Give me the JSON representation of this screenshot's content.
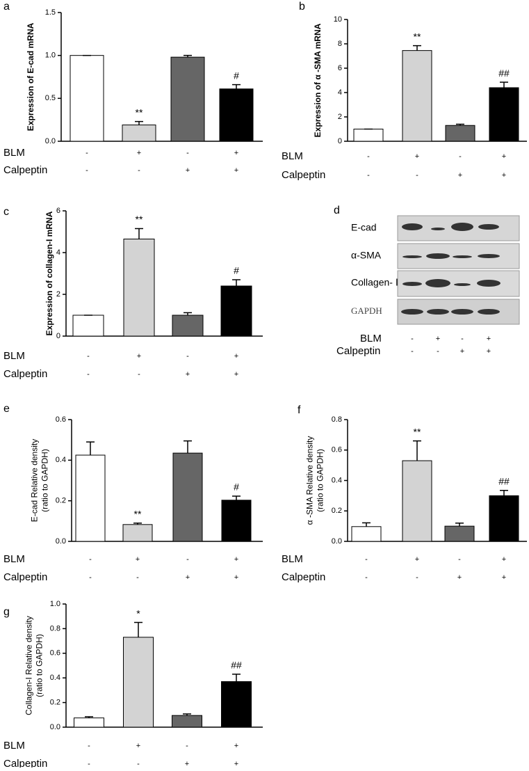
{
  "chart_data": [
    {
      "type": "bar",
      "panel": "a",
      "ylabel": [
        "Expression of E-cad mRNA"
      ],
      "ylim": [
        0,
        1.5
      ],
      "yticks": [
        {
          "value": 0,
          "label": "0.0"
        },
        0.5,
        {
          "value": 1,
          "label": "1.0"
        },
        1.5
      ],
      "values": [
        1.0,
        0.19,
        0.98,
        0.61
      ],
      "errors": [
        0,
        0.04,
        0.02,
        0.05
      ],
      "colors": [
        "#ffffff",
        "#d3d3d3",
        "#666666",
        "#000000"
      ],
      "annotations": [
        null,
        "**",
        null,
        "#"
      ],
      "treatments": [
        {
          "name": "BLM",
          "signs": [
            "-",
            "+",
            "-",
            "+"
          ]
        },
        {
          "name": "Calpeptin",
          "signs": [
            "-",
            "-",
            "+",
            "+"
          ]
        }
      ]
    },
    {
      "type": "bar",
      "panel": "b",
      "ylabel": [
        "Expression of α -SMA mRNA"
      ],
      "ylim": [
        0,
        10
      ],
      "yticks": [
        0,
        2,
        4,
        6,
        8,
        10
      ],
      "values": [
        1.0,
        7.45,
        1.3,
        4.4
      ],
      "errors": [
        0,
        0.4,
        0.1,
        0.45
      ],
      "colors": [
        "#ffffff",
        "#d3d3d3",
        "#666666",
        "#000000"
      ],
      "annotations": [
        null,
        "**",
        null,
        "##"
      ],
      "treatments": [
        {
          "name": "BLM",
          "signs": [
            "-",
            "+",
            "-",
            "+"
          ]
        },
        {
          "name": "Calpeptin",
          "signs": [
            "-",
            "-",
            "+",
            "+"
          ]
        }
      ]
    },
    {
      "type": "bar",
      "panel": "c",
      "ylabel": [
        "Expression of collagen-I mRNA"
      ],
      "ylim": [
        0,
        6
      ],
      "yticks": [
        0,
        2,
        4,
        6
      ],
      "values": [
        1.0,
        4.65,
        1.0,
        2.4
      ],
      "errors": [
        0,
        0.5,
        0.12,
        0.3
      ],
      "colors": [
        "#ffffff",
        "#d3d3d3",
        "#666666",
        "#000000"
      ],
      "annotations": [
        null,
        "**",
        null,
        "#"
      ],
      "treatments": [
        {
          "name": "BLM",
          "signs": [
            "-",
            "+",
            "-",
            "+"
          ]
        },
        {
          "name": "Calpeptin",
          "signs": [
            "-",
            "-",
            "+",
            "+"
          ]
        }
      ]
    },
    {
      "type": "bar",
      "panel": "e",
      "ylabel": [
        "E-cad Relative density",
        "(ratio to GAPDH)"
      ],
      "ylim": [
        0,
        0.6
      ],
      "yticks": [
        {
          "value": 0,
          "label": "0.0"
        },
        0.2,
        0.4,
        0.6
      ],
      "values": [
        0.425,
        0.083,
        0.435,
        0.203
      ],
      "errors": [
        0.065,
        0.007,
        0.06,
        0.02
      ],
      "colors": [
        "#ffffff",
        "#d3d3d3",
        "#666666",
        "#000000"
      ],
      "annotations": [
        null,
        "**",
        null,
        "#"
      ],
      "treatments": [
        {
          "name": "BLM",
          "signs": [
            "-",
            "+",
            "-",
            "+"
          ]
        },
        {
          "name": "Calpeptin",
          "signs": [
            "-",
            "-",
            "+",
            "+"
          ]
        }
      ]
    },
    {
      "type": "bar",
      "panel": "f",
      "ylabel": [
        "α -SMA Relative density",
        "(ratio to GAPDH)"
      ],
      "ylim": [
        0,
        0.8
      ],
      "yticks": [
        {
          "value": 0,
          "label": "0.0"
        },
        0.2,
        0.4,
        0.6,
        0.8
      ],
      "values": [
        0.097,
        0.53,
        0.1,
        0.3
      ],
      "errors": [
        0.025,
        0.13,
        0.02,
        0.035
      ],
      "colors": [
        "#ffffff",
        "#d3d3d3",
        "#666666",
        "#000000"
      ],
      "annotations": [
        null,
        "**",
        null,
        "##"
      ],
      "treatments": [
        {
          "name": "BLM",
          "signs": [
            "-",
            "+",
            "-",
            "+"
          ]
        },
        {
          "name": "Calpeptin",
          "signs": [
            "-",
            "-",
            "+",
            "+"
          ]
        }
      ]
    },
    {
      "type": "bar",
      "panel": "g",
      "ylabel": [
        "Collagen-I Relative density",
        "(ratio to GAPDH)"
      ],
      "ylim": [
        0,
        1.0
      ],
      "yticks": [
        {
          "value": 0,
          "label": "0.0"
        },
        0.2,
        0.4,
        0.6,
        0.8,
        {
          "value": 1,
          "label": "1.0"
        }
      ],
      "values": [
        0.075,
        0.73,
        0.095,
        0.37
      ],
      "errors": [
        0.01,
        0.12,
        0.012,
        0.06
      ],
      "colors": [
        "#ffffff",
        "#d3d3d3",
        "#666666",
        "#000000"
      ],
      "annotations": [
        null,
        "*",
        null,
        "##"
      ],
      "treatments": [
        {
          "name": "BLM",
          "signs": [
            "-",
            "+",
            "-",
            "+"
          ]
        },
        {
          "name": "Calpeptin",
          "signs": [
            "-",
            "-",
            "+",
            "+"
          ]
        }
      ]
    }
  ],
  "blot": {
    "panel": "d",
    "rows": [
      "E-cad",
      "α-SMA",
      "Collagen- Ⅰ",
      "GAPDH"
    ],
    "treatments": [
      {
        "name": "BLM",
        "signs": [
          "-",
          "+",
          "-",
          "+"
        ]
      },
      {
        "name": "Calpeptin",
        "signs": [
          "-",
          "-",
          "+",
          "+"
        ]
      }
    ]
  }
}
